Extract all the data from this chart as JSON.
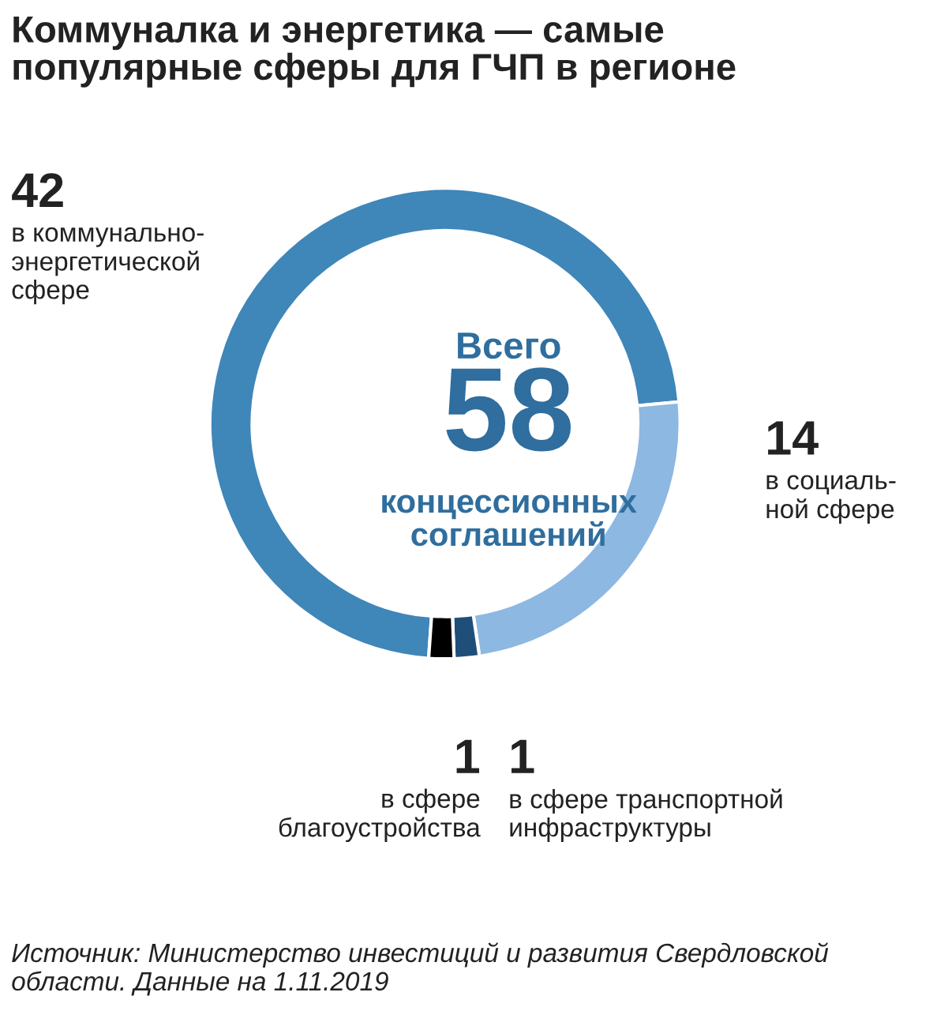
{
  "chart_data": {
    "type": "donut",
    "title": "Коммуналка и энергетика — самые\nпопулярные сферы для ГЧП в регионе",
    "categories": [
      "в коммунально-\nэнергетической\nсфере",
      "в социаль-\nной сфере",
      "в сфере транспортной\nинфраструктуры",
      "в сфере\nблагоустройства"
    ],
    "values": [
      42,
      14,
      1,
      1
    ],
    "colors": [
      "#3f86b9",
      "#8db8e1",
      "#1f4e79",
      "#000000"
    ],
    "data_labels": true,
    "annotations": [
      "Всего",
      "58",
      "концессионных\nсоглашений",
      "Источник: Министерство инвестиций и развития Свердловской\nобласти. Данные на 1.11.2019"
    ]
  }
}
